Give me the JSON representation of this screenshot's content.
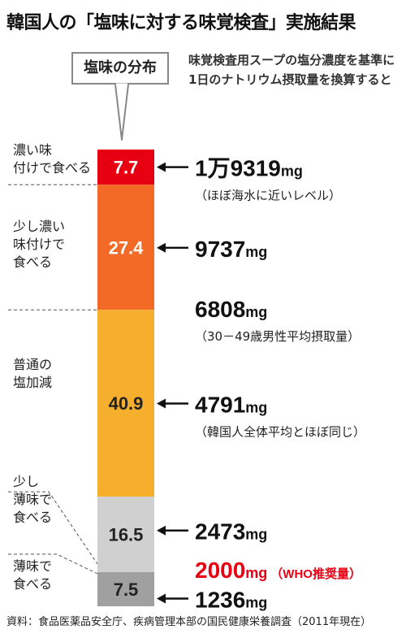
{
  "title": "韓国人の「塩味に対する味覚検査」実施結果",
  "distribution_label": "塩味の分布",
  "note": "味覚検査用スープの塩分濃度を基準に1日のナトリウム摂取量を換算すると",
  "source": "資料：食品医薬品安全庁、疾病管理本部の国民健康栄養調査（2011年現在）",
  "colors": {
    "segment_1": "#e60012",
    "segment_2": "#f26a26",
    "segment_3": "#f6ae2d",
    "segment_4": "#d0d0d0",
    "segment_5": "#a0a0a0",
    "who": "#e60012",
    "text": "#222222"
  },
  "chart_data": {
    "type": "bar",
    "stacked": true,
    "unit": "%",
    "ylim": [
      0,
      100
    ],
    "categories": [
      "濃い味付けで食べる",
      "少し濃い味付けで食べる",
      "普通の塩加減",
      "少し薄味で食べる",
      "薄味で食べる"
    ],
    "category_lines": [
      [
        "濃い味",
        "付けで食べる"
      ],
      [
        "少し濃い",
        "味付けで",
        "食べる"
      ],
      [
        "普通の",
        "塩加減"
      ],
      [
        "少し",
        "薄味で",
        "食べる"
      ],
      [
        "薄味で",
        "食べる"
      ]
    ],
    "values": [
      7.7,
      27.4,
      40.9,
      16.5,
      7.5
    ],
    "value_labels": [
      "7.7",
      "27.4",
      "40.9",
      "16.5",
      "7.5"
    ],
    "annotations": [
      {
        "number": "1万9319",
        "unit": "mg",
        "sub": "（ほぼ海水に近いレベル）",
        "position": 3.85
      },
      {
        "number": "9737",
        "unit": "mg",
        "position": 21.5
      },
      {
        "number": "6808",
        "unit": "mg",
        "sub": "（30－49歳男性平均摂取量）",
        "position": 34.7,
        "no_arrow": true
      },
      {
        "number": "4791",
        "unit": "mg",
        "sub": "（韓国人全体平均とほぼ同じ）",
        "position": 55.6
      },
      {
        "number": "2473",
        "unit": "mg",
        "position": 83.4
      },
      {
        "number": "2000",
        "unit": "mg",
        "suffix": "（WHO推奨量）",
        "position": 91.8,
        "highlight": true,
        "no_arrow": true
      },
      {
        "number": "1236",
        "unit": "mg",
        "position": 98.3
      }
    ]
  }
}
